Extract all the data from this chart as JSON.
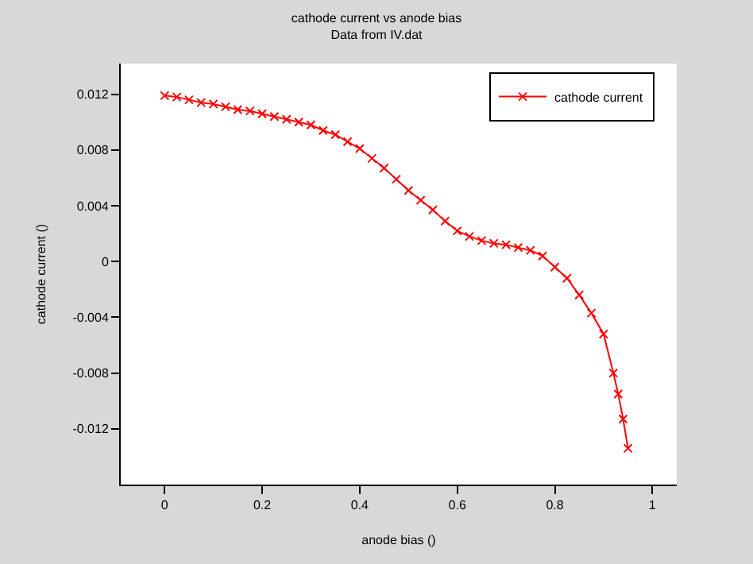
{
  "chart_data": {
    "type": "line",
    "title": "cathode current vs anode bias",
    "subtitle": "Data from IV.dat",
    "xlabel": "anode bias ()",
    "ylabel": "cathode current ()",
    "x": [
      0,
      0.025,
      0.05,
      0.075,
      0.1,
      0.125,
      0.15,
      0.175,
      0.2,
      0.225,
      0.25,
      0.275,
      0.3,
      0.325,
      0.35,
      0.375,
      0.4,
      0.425,
      0.45,
      0.475,
      0.5,
      0.525,
      0.55,
      0.575,
      0.6,
      0.625,
      0.65,
      0.675,
      0.7,
      0.725,
      0.75,
      0.775,
      0.8,
      0.825,
      0.85,
      0.875,
      0.9,
      0.92,
      0.93,
      0.94,
      0.95
    ],
    "series": [
      {
        "name": "cathode current",
        "color": "#ff0000",
        "values": [
          0.0119,
          0.0118,
          0.0116,
          0.0114,
          0.0113,
          0.0111,
          0.0109,
          0.0108,
          0.0106,
          0.0104,
          0.0102,
          0.01,
          0.0098,
          0.0094,
          0.0091,
          0.0086,
          0.0081,
          0.0074,
          0.0067,
          0.0059,
          0.0051,
          0.0044,
          0.0037,
          0.0029,
          0.0022,
          0.0018,
          0.0015,
          0.0013,
          0.0012,
          0.001,
          0.0008,
          0.0004,
          -0.0004,
          -0.0012,
          -0.0024,
          -0.0037,
          -0.0052,
          -0.008,
          -0.0095,
          -0.0113,
          -0.0134
        ]
      }
    ],
    "xlim": [
      -0.09,
      1.05
    ],
    "xticks": [
      0,
      0.2,
      0.4,
      0.6,
      0.8,
      1
    ],
    "ylim": [
      -0.016,
      0.0142
    ],
    "yticks": [
      -0.012,
      -0.008,
      -0.004,
      0,
      0.004,
      0.008,
      0.012
    ],
    "marker": "cross",
    "line_style": "solid",
    "legend": "top right"
  }
}
